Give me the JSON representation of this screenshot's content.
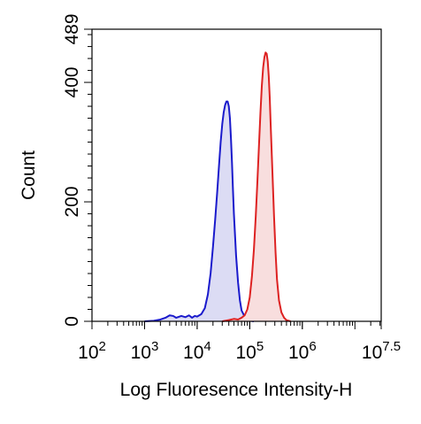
{
  "chart_data": {
    "type": "area",
    "title": "",
    "xlabel": "Log Fluoresence Intensity-H",
    "ylabel": "Count",
    "xscale": "log",
    "xlim": [
      100,
      31622776.6
    ],
    "ylim": [
      0,
      489
    ],
    "grid": false,
    "legend": "none",
    "x_ticks": [
      {
        "value": 100,
        "base": "10",
        "exp": "2"
      },
      {
        "value": 1000,
        "base": "10",
        "exp": "3"
      },
      {
        "value": 10000,
        "base": "10",
        "exp": "4"
      },
      {
        "value": 100000,
        "base": "10",
        "exp": "5"
      },
      {
        "value": 1000000,
        "base": "10",
        "exp": "6"
      },
      {
        "value": 31622776.6,
        "base": "10",
        "exp": "7.5"
      }
    ],
    "y_ticks": [
      {
        "value": 0,
        "label": "0"
      },
      {
        "value": 200,
        "label": "200"
      },
      {
        "value": 400,
        "label": "400"
      },
      {
        "value": 489,
        "label": "489"
      }
    ],
    "series": [
      {
        "color": "#1a1acc",
        "fill": "#dcdcf4",
        "points": [
          [
            1000,
            0
          ],
          [
            1500,
            1
          ],
          [
            2000,
            3
          ],
          [
            2500,
            6
          ],
          [
            3000,
            10
          ],
          [
            3500,
            9
          ],
          [
            4000,
            6
          ],
          [
            5000,
            9
          ],
          [
            6000,
            7
          ],
          [
            7000,
            10
          ],
          [
            8000,
            6
          ],
          [
            9000,
            9
          ],
          [
            10000,
            8
          ],
          [
            12000,
            12
          ],
          [
            14000,
            22
          ],
          [
            16000,
            45
          ],
          [
            18000,
            80
          ],
          [
            20000,
            125
          ],
          [
            22000,
            170
          ],
          [
            24000,
            215
          ],
          [
            26000,
            260
          ],
          [
            28000,
            300
          ],
          [
            30000,
            330
          ],
          [
            32000,
            350
          ],
          [
            34000,
            362
          ],
          [
            36000,
            368
          ],
          [
            38000,
            368
          ],
          [
            40000,
            360
          ],
          [
            42000,
            340
          ],
          [
            44000,
            305
          ],
          [
            46000,
            265
          ],
          [
            48000,
            220
          ],
          [
            50000,
            180
          ],
          [
            55000,
            110
          ],
          [
            60000,
            65
          ],
          [
            65000,
            35
          ],
          [
            70000,
            18
          ],
          [
            80000,
            8
          ],
          [
            90000,
            3
          ],
          [
            100000,
            1
          ],
          [
            120000,
            0
          ]
        ]
      },
      {
        "color": "#dd2222",
        "fill": "#f8dede",
        "points": [
          [
            30000,
            0
          ],
          [
            40000,
            2
          ],
          [
            50000,
            4
          ],
          [
            60000,
            3
          ],
          [
            70000,
            6
          ],
          [
            80000,
            10
          ],
          [
            90000,
            20
          ],
          [
            100000,
            40
          ],
          [
            110000,
            75
          ],
          [
            120000,
            120
          ],
          [
            130000,
            175
          ],
          [
            140000,
            235
          ],
          [
            150000,
            295
          ],
          [
            160000,
            350
          ],
          [
            170000,
            395
          ],
          [
            180000,
            425
          ],
          [
            190000,
            442
          ],
          [
            200000,
            450
          ],
          [
            210000,
            448
          ],
          [
            220000,
            435
          ],
          [
            230000,
            410
          ],
          [
            240000,
            375
          ],
          [
            250000,
            330
          ],
          [
            270000,
            250
          ],
          [
            290000,
            175
          ],
          [
            310000,
            115
          ],
          [
            330000,
            70
          ],
          [
            360000,
            35
          ],
          [
            400000,
            15
          ],
          [
            450000,
            6
          ],
          [
            500000,
            2
          ],
          [
            600000,
            0
          ]
        ]
      }
    ]
  }
}
